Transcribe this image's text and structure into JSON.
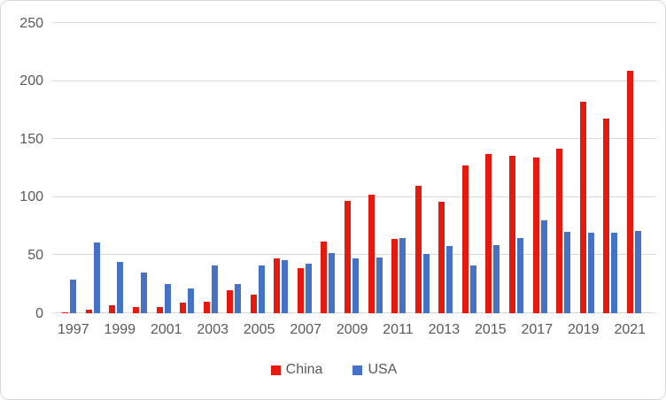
{
  "chart_data": {
    "type": "bar",
    "title": "",
    "xlabel": "",
    "ylabel": "",
    "categories": [
      1997,
      1998,
      1999,
      2000,
      2001,
      2002,
      2003,
      2004,
      2005,
      2006,
      2007,
      2008,
      2009,
      2010,
      2011,
      2012,
      2013,
      2014,
      2015,
      2016,
      2017,
      2018,
      2019,
      2020,
      2021
    ],
    "series": [
      {
        "name": "China",
        "color": "#e41a10",
        "values": [
          1,
          3,
          7,
          5,
          5,
          9,
          10,
          20,
          16,
          47,
          39,
          62,
          97,
          102,
          64,
          110,
          96,
          127,
          137,
          136,
          134,
          142,
          182,
          168,
          209
        ]
      },
      {
        "name": "USA",
        "color": "#4472c4",
        "values": [
          29,
          61,
          44,
          35,
          25,
          21,
          41,
          25,
          41,
          46,
          43,
          52,
          47,
          48,
          65,
          51,
          58,
          41,
          59,
          65,
          80,
          70,
          69,
          69,
          71
        ]
      }
    ],
    "ylim": [
      0,
      250
    ],
    "yticks": [
      0,
      50,
      100,
      150,
      200,
      250
    ],
    "xtick_labels": [
      "1997",
      "1999",
      "2001",
      "2003",
      "2005",
      "2007",
      "2009",
      "2011",
      "2013",
      "2015",
      "2017",
      "2019",
      "2021"
    ],
    "grid": true,
    "legend_position": "bottom"
  },
  "colors": {
    "grid": "#d9d9d9",
    "axis_text": "#595959",
    "frame_border": "#d9d9d9",
    "background": "#ffffff"
  }
}
